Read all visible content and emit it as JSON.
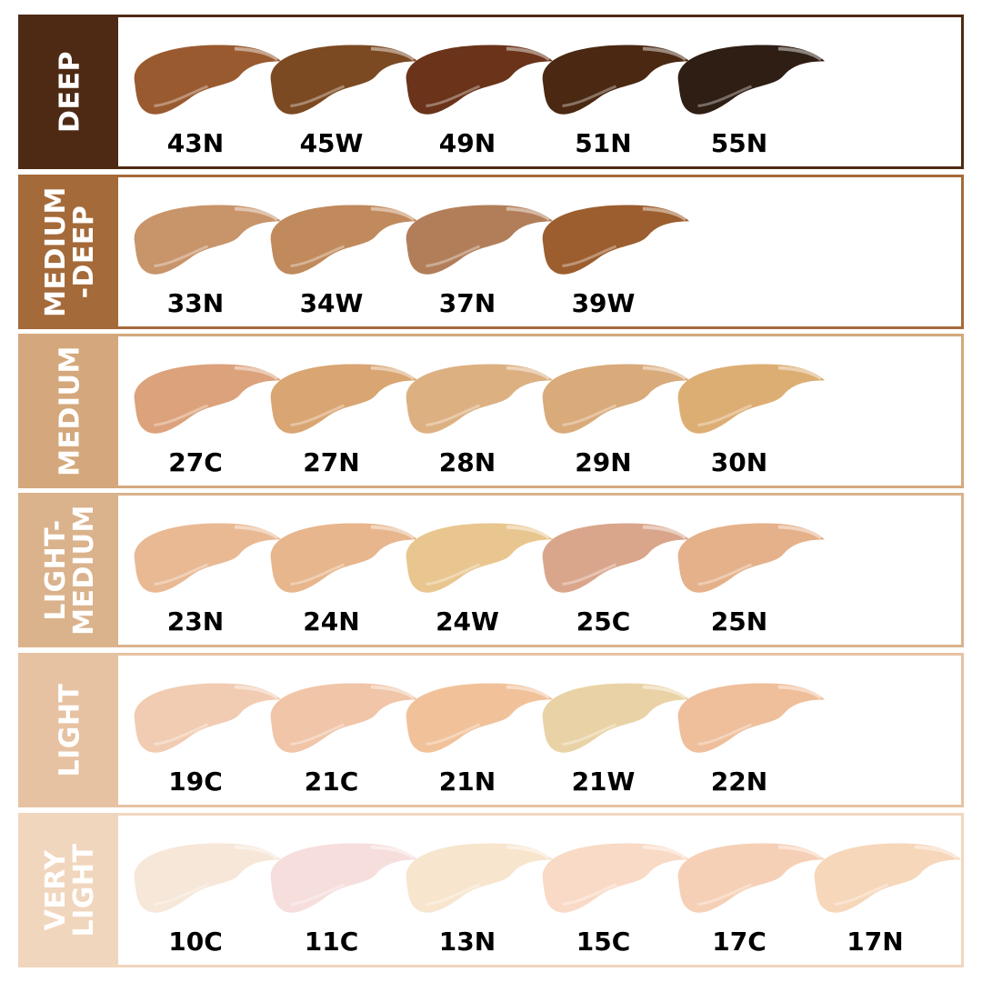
{
  "categories": [
    {
      "name": "DEEP",
      "color": "#4e2a14",
      "shades": [
        {
          "code": "43N",
          "color": "#9a5a30"
        },
        {
          "code": "45W",
          "color": "#7c4a22"
        },
        {
          "code": "49N",
          "color": "#6a331a"
        },
        {
          "code": "51N",
          "color": "#4a2812"
        },
        {
          "code": "55N",
          "color": "#2f1e14"
        }
      ]
    },
    {
      "name": "MEDIUM\n-DEEP",
      "color": "#a56a3a",
      "shades": [
        {
          "code": "33N",
          "color": "#c8946a"
        },
        {
          "code": "34W",
          "color": "#c08a5c"
        },
        {
          "code": "37N",
          "color": "#b27e5a"
        },
        {
          "code": "39W",
          "color": "#9c5e2e"
        }
      ]
    },
    {
      "name": "MEDIUM",
      "color": "#d4a87c",
      "shades": [
        {
          "code": "27C",
          "color": "#dca27c"
        },
        {
          "code": "27N",
          "color": "#d9a572"
        },
        {
          "code": "28N",
          "color": "#ddb082"
        },
        {
          "code": "29N",
          "color": "#d9aa7a"
        },
        {
          "code": "30N",
          "color": "#ddae74"
        }
      ]
    },
    {
      "name": "LIGHT-\nMEDIUM",
      "color": "#dab28c",
      "shades": [
        {
          "code": "23N",
          "color": "#e9b994"
        },
        {
          "code": "24N",
          "color": "#e7b68c"
        },
        {
          "code": "24W",
          "color": "#e9c690"
        },
        {
          "code": "25C",
          "color": "#d9a68c"
        },
        {
          "code": "25N",
          "color": "#e5b18a"
        }
      ]
    },
    {
      "name": "LIGHT",
      "color": "#e7c2a2",
      "shades": [
        {
          "code": "19C",
          "color": "#f1ccb2"
        },
        {
          "code": "21C",
          "color": "#f0c5a8"
        },
        {
          "code": "21N",
          "color": "#f1c29a"
        },
        {
          "code": "21W",
          "color": "#e9d3a6"
        },
        {
          "code": "22N",
          "color": "#efbe9a"
        }
      ]
    },
    {
      "name": "VERY\nLIGHT",
      "color": "#f1d6be",
      "shades": [
        {
          "code": "10C",
          "color": "#f6e7d8"
        },
        {
          "code": "11C",
          "color": "#f6dedd"
        },
        {
          "code": "13N",
          "color": "#f7e5ce"
        },
        {
          "code": "15C",
          "color": "#f9dac6"
        },
        {
          "code": "17C",
          "color": "#f6d0b6"
        },
        {
          "code": "17N",
          "color": "#f6d7ba"
        }
      ]
    }
  ]
}
